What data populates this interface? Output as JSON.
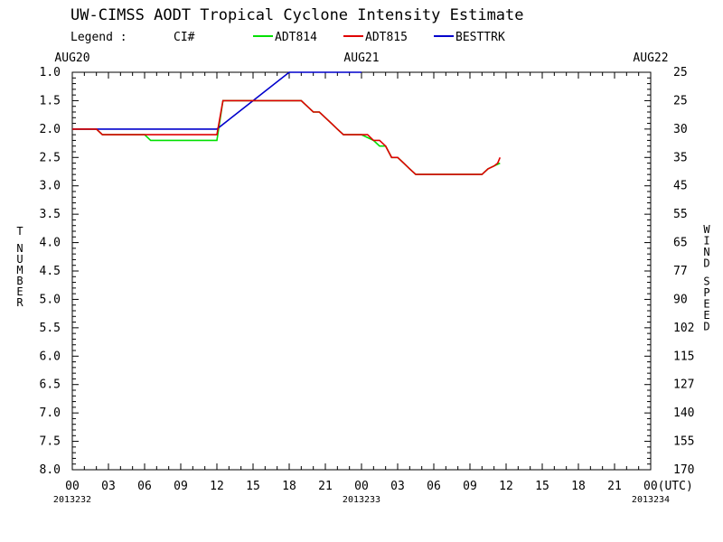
{
  "chart_data": {
    "type": "line",
    "title": "UW-CIMSS AODT Tropical Cyclone Intensity Estimate",
    "legend": {
      "label": "Legend :",
      "ci_label": "CI#"
    },
    "ylabel_left": "T NUMBER",
    "ylabel_right": "WIND SPEED",
    "ylim": [
      8.0,
      1.0
    ],
    "xlim_hours": [
      0,
      48
    ],
    "y_ticks": [
      "1.0",
      "1.5",
      "2.0",
      "2.5",
      "3.0",
      "3.5",
      "4.0",
      "4.5",
      "5.0",
      "5.5",
      "6.0",
      "6.5",
      "7.0",
      "7.5",
      "8.0"
    ],
    "wind_ticks": [
      "25",
      "25",
      "30",
      "35",
      "45",
      "55",
      "65",
      "77",
      "90",
      "102",
      "115",
      "127",
      "140",
      "155",
      "170"
    ],
    "x_ticks": [
      "00",
      "03",
      "06",
      "09",
      "12",
      "15",
      "18",
      "21",
      "00",
      "03",
      "06",
      "09",
      "12",
      "15",
      "18",
      "21",
      "00(UTC)"
    ],
    "top_dates": [
      "AUG20",
      "AUG21",
      "AUG22"
    ],
    "bottom_dates": [
      "2013232",
      "2013233",
      "2013234"
    ],
    "series": [
      {
        "name": "ADT814",
        "color": "#00e000",
        "points": [
          [
            0,
            2.0
          ],
          [
            2,
            2.0
          ],
          [
            2.5,
            2.1
          ],
          [
            6,
            2.1
          ],
          [
            6.5,
            2.2
          ],
          [
            12,
            2.2
          ],
          [
            12.5,
            1.5
          ],
          [
            19,
            1.5
          ],
          [
            19.5,
            1.6
          ],
          [
            20,
            1.7
          ],
          [
            20.5,
            1.7
          ],
          [
            21,
            1.8
          ],
          [
            21.5,
            1.9
          ],
          [
            22,
            2.0
          ],
          [
            22.5,
            2.1
          ],
          [
            24,
            2.1
          ],
          [
            25,
            2.2
          ],
          [
            25.5,
            2.3
          ],
          [
            26,
            2.3
          ],
          [
            26.5,
            2.5
          ],
          [
            27,
            2.5
          ],
          [
            27.5,
            2.6
          ],
          [
            28,
            2.7
          ],
          [
            28.5,
            2.8
          ],
          [
            34,
            2.8
          ],
          [
            34.5,
            2.7
          ],
          [
            35,
            2.65
          ],
          [
            35.5,
            2.6
          ]
        ]
      },
      {
        "name": "ADT815",
        "color": "#e00000",
        "points": [
          [
            0,
            2.0
          ],
          [
            2,
            2.0
          ],
          [
            2.5,
            2.1
          ],
          [
            12,
            2.1
          ],
          [
            12.5,
            1.5
          ],
          [
            19,
            1.5
          ],
          [
            19.5,
            1.6
          ],
          [
            20,
            1.7
          ],
          [
            20.5,
            1.7
          ],
          [
            21,
            1.8
          ],
          [
            21.5,
            1.9
          ],
          [
            22,
            2.0
          ],
          [
            22.5,
            2.1
          ],
          [
            24.5,
            2.1
          ],
          [
            25,
            2.2
          ],
          [
            25.5,
            2.2
          ],
          [
            26,
            2.3
          ],
          [
            26.5,
            2.5
          ],
          [
            27,
            2.5
          ],
          [
            27.5,
            2.6
          ],
          [
            28,
            2.7
          ],
          [
            28.5,
            2.8
          ],
          [
            34,
            2.8
          ],
          [
            34.5,
            2.7
          ],
          [
            35,
            2.65
          ],
          [
            35.3,
            2.6
          ],
          [
            35.5,
            2.5
          ]
        ]
      },
      {
        "name": "BESTTRK",
        "color": "#0000cc",
        "points": [
          [
            0,
            2.0
          ],
          [
            12,
            2.0
          ],
          [
            18,
            1.0
          ],
          [
            24,
            1.0
          ]
        ]
      }
    ]
  }
}
